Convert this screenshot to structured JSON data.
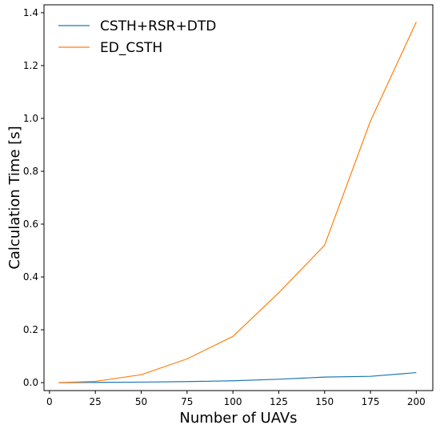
{
  "chart_data": {
    "type": "line",
    "title": "",
    "xlabel": "Number of UAVs",
    "ylabel": "Calculation Time [s]",
    "x": [
      5,
      25,
      50,
      75,
      100,
      125,
      150,
      175,
      200
    ],
    "xlim": [
      -3,
      209
    ],
    "ylim": [
      -0.03,
      1.43
    ],
    "xticks": [
      0,
      25,
      50,
      75,
      100,
      125,
      150,
      175,
      200
    ],
    "yticks": [
      0.0,
      0.2,
      0.4,
      0.6,
      0.8,
      1.0,
      1.2,
      1.4
    ],
    "ytick_labels": [
      "0.0",
      "0.2",
      "0.4",
      "0.6",
      "0.8",
      "1.0",
      "1.2",
      "1.4"
    ],
    "legend_position": "top-left",
    "grid": false,
    "series": [
      {
        "name": "CSTH+RSR+DTD",
        "color": "#1f77b4",
        "values": [
          0.0,
          0.001,
          0.002,
          0.004,
          0.007,
          0.013,
          0.021,
          0.024,
          0.038
        ]
      },
      {
        "name": "ED_CSTH",
        "color": "#ff7f0e",
        "values": [
          0.0,
          0.005,
          0.03,
          0.09,
          0.175,
          0.34,
          0.52,
          0.99,
          1.365
        ]
      }
    ]
  }
}
